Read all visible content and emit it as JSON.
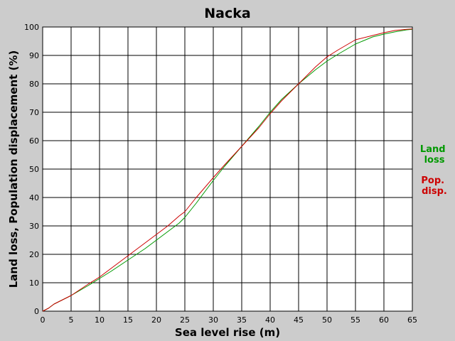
{
  "chart_data": {
    "type": "line",
    "title": "Nacka",
    "xlabel": "Sea level rise (m)",
    "ylabel": "Land loss, Population displacement (%)",
    "xlim": [
      0,
      65
    ],
    "ylim": [
      0,
      100
    ],
    "xticks": [
      "0",
      "5",
      "10",
      "15",
      "20",
      "25",
      "30",
      "35",
      "40",
      "45",
      "50",
      "55",
      "60",
      "65"
    ],
    "yticks": [
      "0",
      "10",
      "20",
      "30",
      "40",
      "50",
      "60",
      "70",
      "80",
      "90",
      "100"
    ],
    "grid": true,
    "legend": {
      "placement": "right",
      "entries": [
        {
          "label_lines": [
            "Land",
            "loss"
          ],
          "color": "#009900"
        },
        {
          "label_lines": [
            "Pop.",
            "disp."
          ],
          "color": "#cc0000"
        }
      ]
    },
    "series": [
      {
        "color": "#009900",
        "x": [
          0,
          1,
          2,
          3,
          5,
          8,
          10,
          12,
          15,
          18,
          20,
          22,
          24,
          25,
          27,
          30,
          32,
          35,
          38,
          40,
          42,
          45,
          48,
          50,
          52,
          55,
          58,
          60,
          62,
          64,
          65
        ],
        "y": [
          0,
          1,
          2.5,
          3.5,
          5.5,
          9,
          11.5,
          14,
          18,
          22,
          25,
          28,
          31,
          33,
          38,
          46,
          51,
          58,
          65,
          70,
          74.5,
          80,
          85,
          88,
          90.5,
          94,
          96.5,
          97.5,
          98.3,
          99,
          99.2
        ]
      },
      {
        "color": "#cc0000",
        "x": [
          0,
          1,
          2,
          3,
          5,
          8,
          10,
          12,
          15,
          18,
          20,
          22,
          24,
          25,
          27,
          30,
          32,
          35,
          38,
          40,
          42,
          45,
          48,
          50,
          52,
          55,
          58,
          60,
          62,
          64,
          65
        ],
        "y": [
          0,
          1,
          2.5,
          3.5,
          5.5,
          9.5,
          12,
          15,
          19.5,
          24,
          27,
          30,
          33.5,
          35,
          40,
          47,
          51.5,
          58,
          64.5,
          69.5,
          74,
          80,
          86,
          89.5,
          92,
          95.5,
          97,
          98,
          98.8,
          99.2,
          99.3
        ]
      }
    ]
  }
}
